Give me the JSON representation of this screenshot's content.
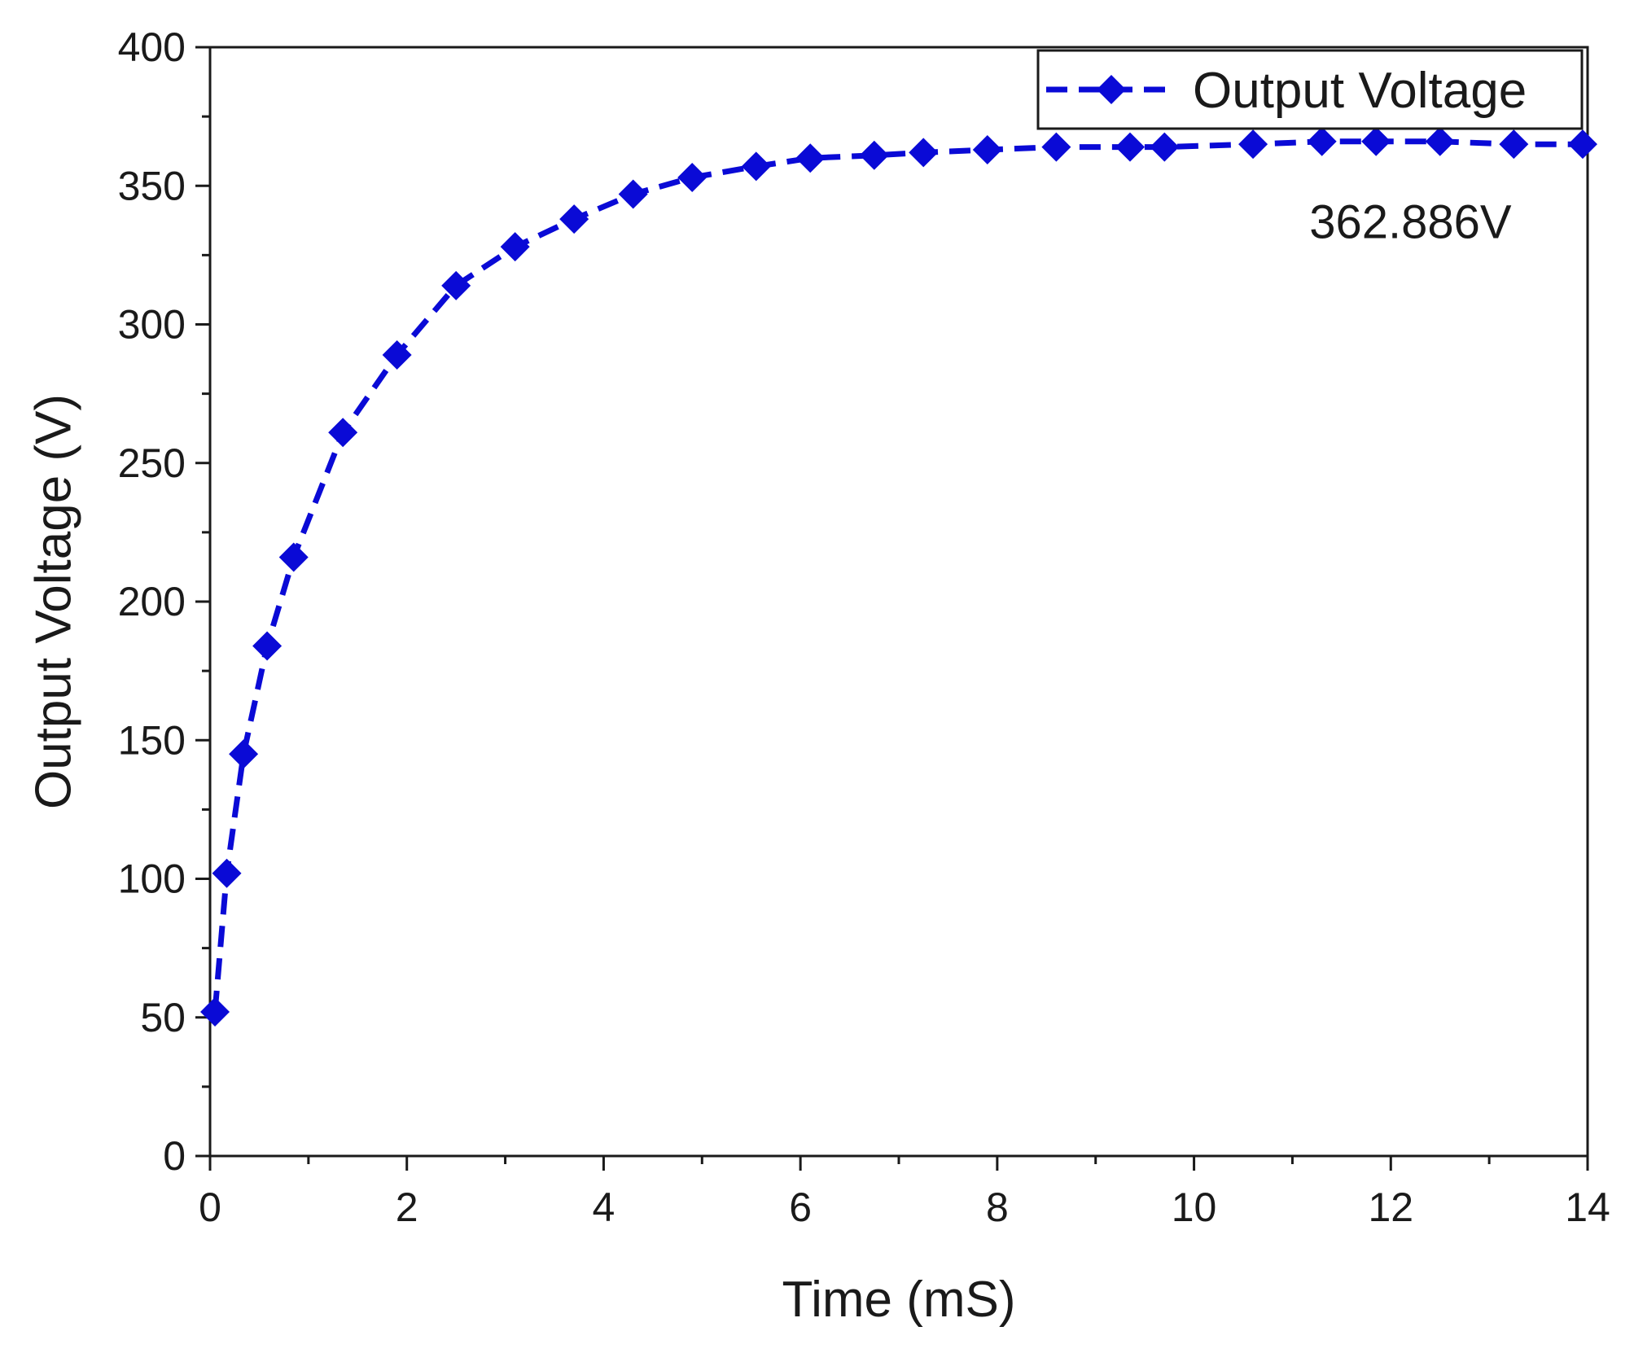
{
  "chart_data": {
    "type": "line",
    "title": "",
    "xlabel": "Time (mS)",
    "ylabel": "Output Voltage (V)",
    "xlim": [
      0,
      14
    ],
    "ylim": [
      0,
      400
    ],
    "xticks": [
      0,
      2,
      4,
      6,
      8,
      10,
      12,
      14
    ],
    "yticks": [
      0,
      50,
      100,
      150,
      200,
      250,
      300,
      350,
      400
    ],
    "grid": false,
    "legend_position": "top-right",
    "series": [
      {
        "name": "Output Voltage",
        "color": "#0a0ad6",
        "line_style": "dashed",
        "marker": "diamond",
        "x": [
          0.05,
          0.17,
          0.34,
          0.58,
          0.85,
          1.35,
          1.9,
          2.5,
          3.1,
          3.7,
          4.3,
          4.9,
          5.55,
          6.1,
          6.75,
          7.25,
          7.9,
          8.6,
          9.35,
          9.7,
          10.6,
          11.3,
          11.85,
          12.5,
          13.25,
          13.95
        ],
        "y": [
          52,
          102,
          145,
          184,
          216,
          261,
          289,
          314,
          328,
          338,
          347,
          353,
          357,
          360,
          361,
          362,
          363,
          364,
          364,
          364,
          365,
          366,
          366,
          366,
          365,
          365
        ]
      }
    ],
    "annotations": [
      {
        "text": "362.886V",
        "x": 12.2,
        "y": 337
      }
    ]
  }
}
